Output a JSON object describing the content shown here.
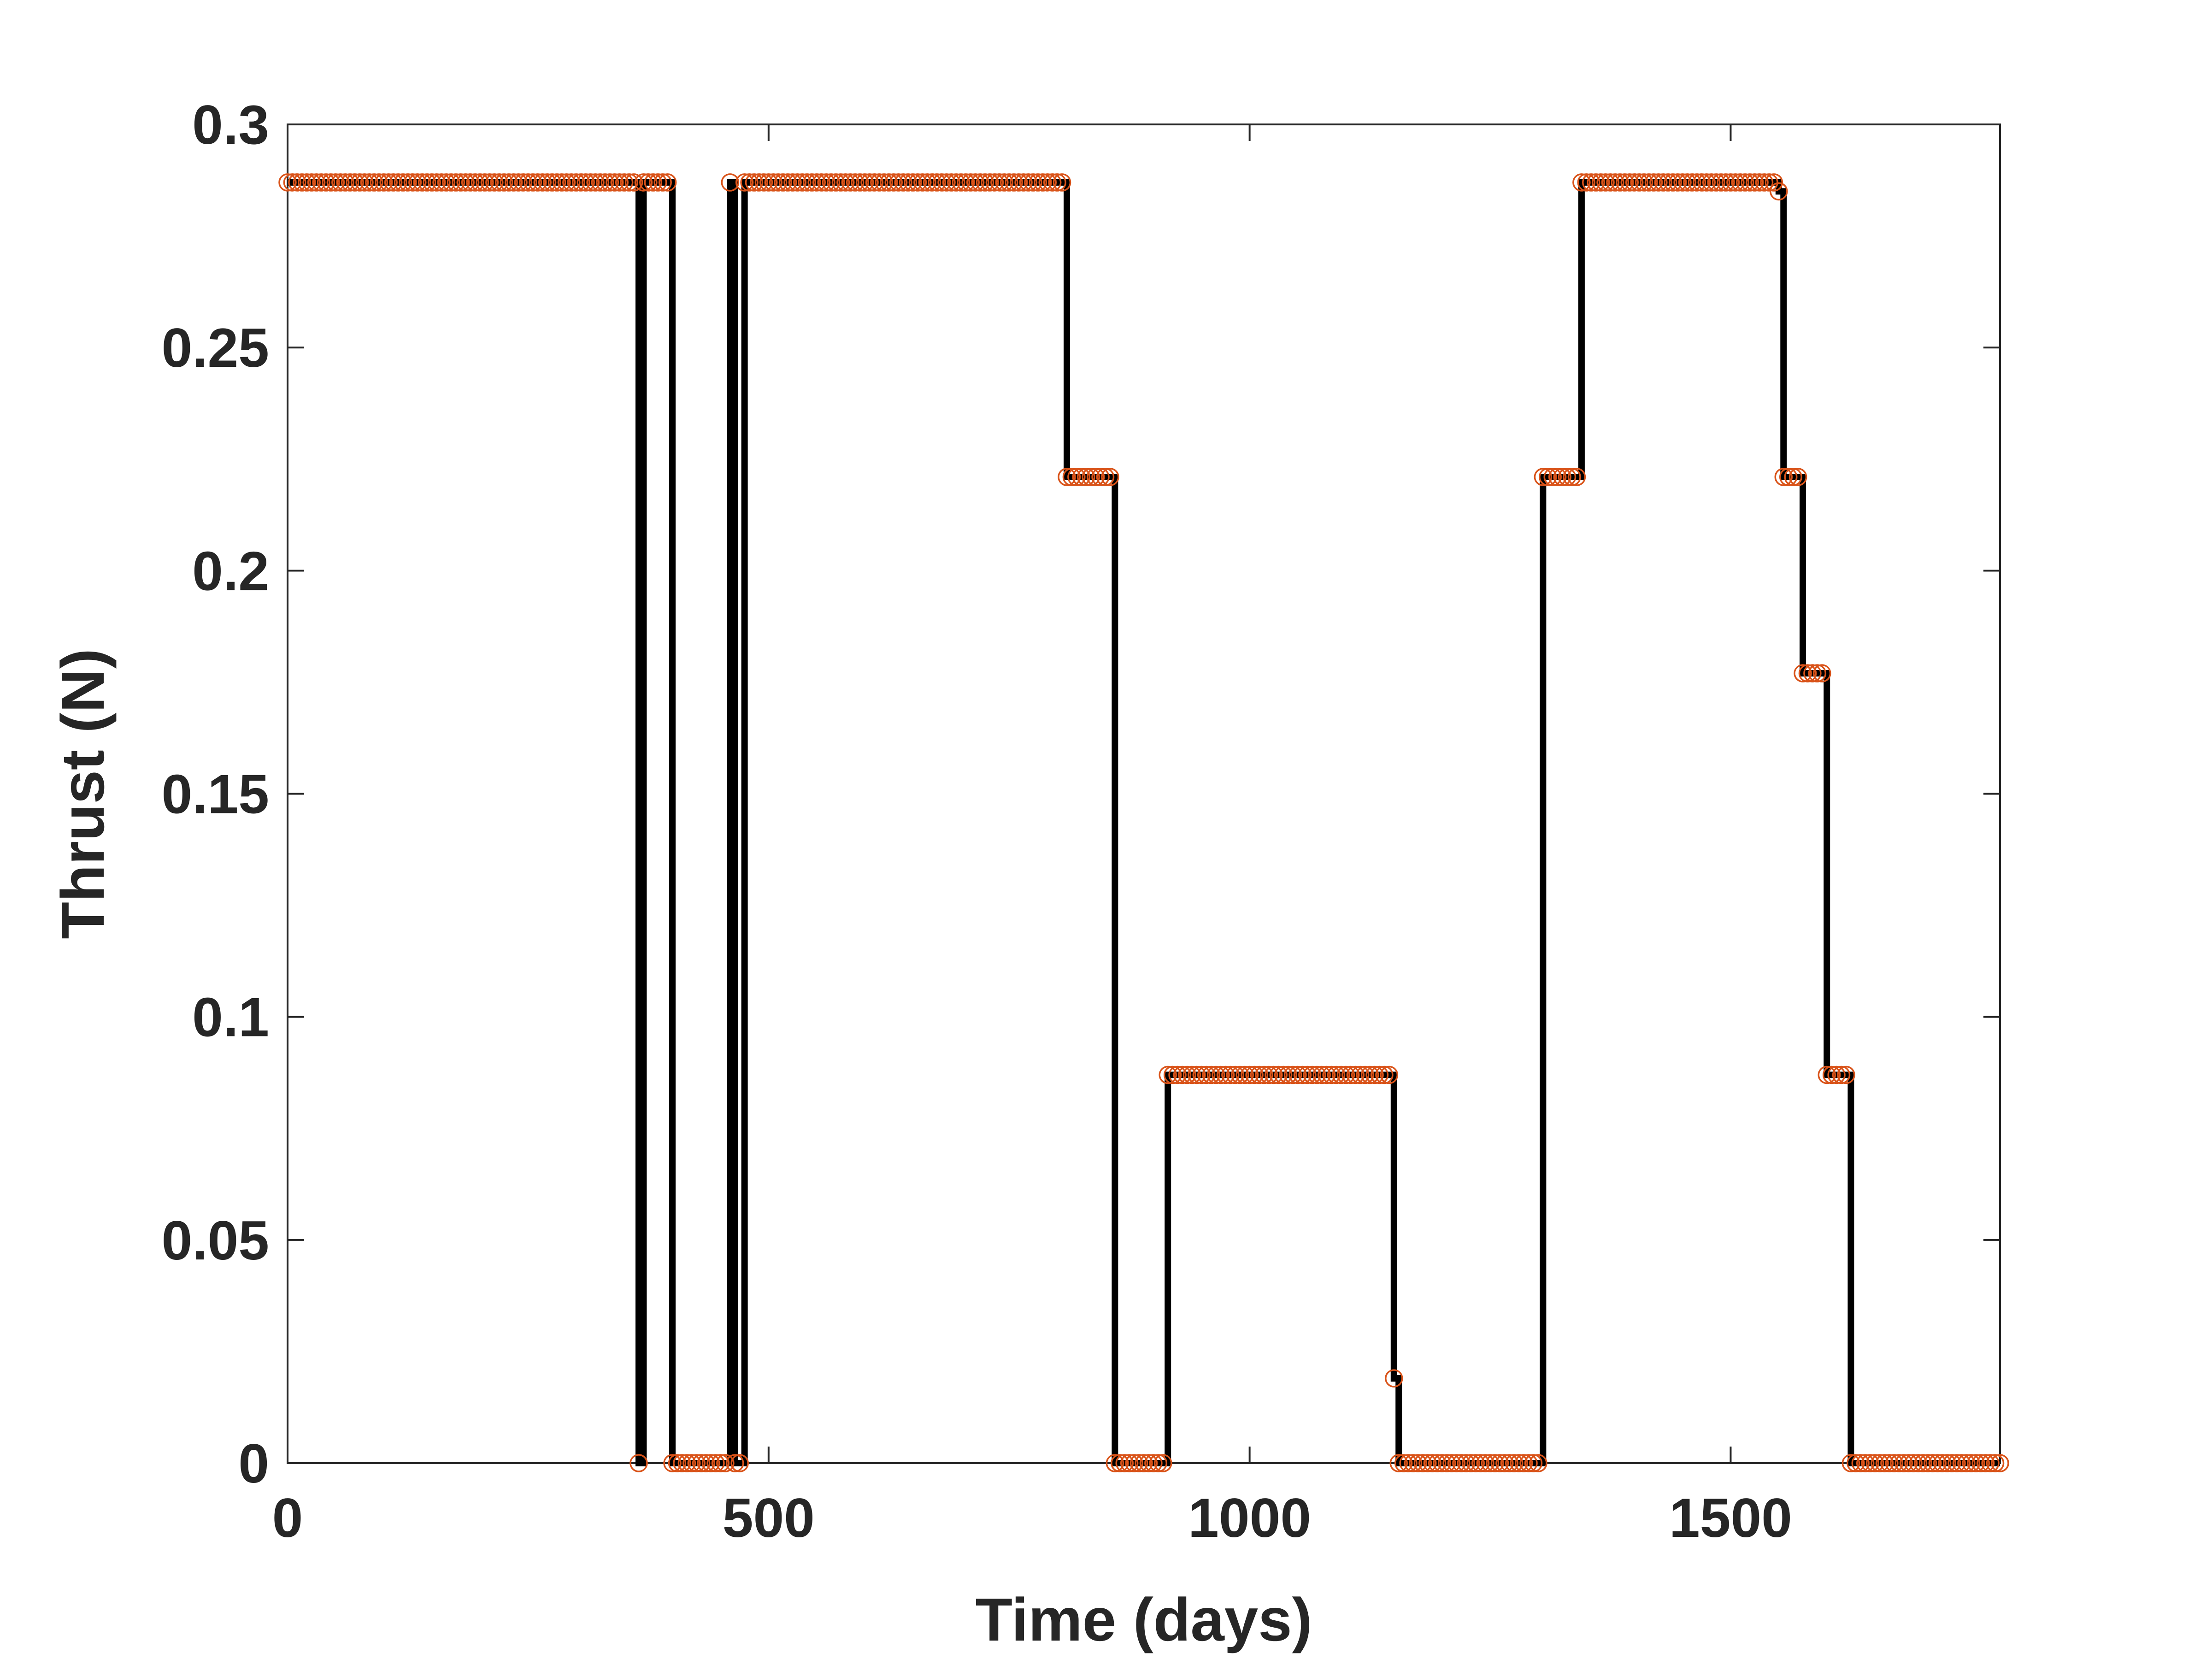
{
  "chart_data": {
    "type": "line",
    "title": "",
    "xlabel": "Time (days)",
    "ylabel": "Thrust (N)",
    "xlim": [
      0,
      1780
    ],
    "ylim": [
      0,
      0.3
    ],
    "x_ticks": [
      0,
      500,
      1000,
      1500
    ],
    "y_ticks": [
      0,
      0.05,
      0.1,
      0.15,
      0.2,
      0.25,
      0.3
    ],
    "x_tick_labels": [
      "0",
      "500",
      "1000",
      "1500"
    ],
    "y_tick_labels": [
      "0",
      "0.05",
      "0.1",
      "0.15",
      "0.2",
      "0.25",
      "0.3"
    ],
    "grid": false,
    "legend": "none",
    "line_color": "#000000",
    "marker_color": "#D95319",
    "marker_spacing_days": 5,
    "series": [
      {
        "style": "step",
        "segments": [
          {
            "start": 0,
            "end": 365,
            "value": 0.287
          },
          {
            "start": 365,
            "end": 370,
            "value": 0.0
          },
          {
            "start": 370,
            "end": 400,
            "value": 0.287
          },
          {
            "start": 400,
            "end": 460,
            "value": 0.0
          },
          {
            "start": 460,
            "end": 465,
            "value": 0.287
          },
          {
            "start": 465,
            "end": 475,
            "value": 0.0
          },
          {
            "start": 475,
            "end": 810,
            "value": 0.287
          },
          {
            "start": 810,
            "end": 860,
            "value": 0.221
          },
          {
            "start": 860,
            "end": 915,
            "value": 0.0
          },
          {
            "start": 915,
            "end": 1150,
            "value": 0.087
          },
          {
            "start": 1150,
            "end": 1155,
            "value": 0.019
          },
          {
            "start": 1155,
            "end": 1305,
            "value": 0.0
          },
          {
            "start": 1305,
            "end": 1345,
            "value": 0.221
          },
          {
            "start": 1345,
            "end": 1550,
            "value": 0.287
          },
          {
            "start": 1550,
            "end": 1555,
            "value": 0.285
          },
          {
            "start": 1555,
            "end": 1575,
            "value": 0.221
          },
          {
            "start": 1575,
            "end": 1600,
            "value": 0.177
          },
          {
            "start": 1600,
            "end": 1625,
            "value": 0.087
          },
          {
            "start": 1625,
            "end": 1780,
            "value": 0.0
          }
        ]
      }
    ]
  }
}
